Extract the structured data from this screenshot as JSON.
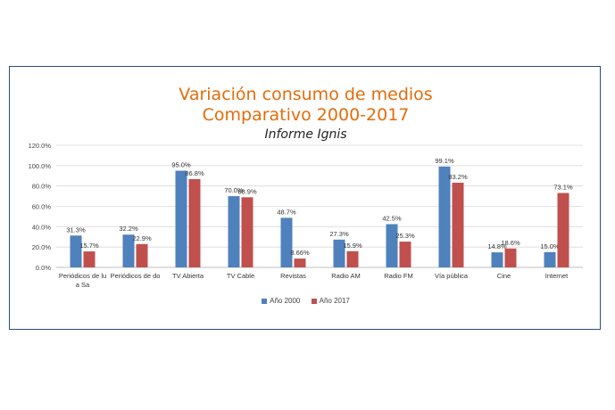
{
  "chart_data": {
    "type": "bar",
    "title_line1": "Variación consumo de medios",
    "title_line2": "Comparativo 2000-2017",
    "subtitle": "Informe Ignis",
    "categories": [
      "Periódicos de lu a Sa",
      "Periódicos de do",
      "TV Abierta",
      "TV Cable",
      "Revistas",
      "Radio AM",
      "Radio FM",
      "Vía pública",
      "Cine",
      "Internet"
    ],
    "category_lines": [
      [
        "Periódicos de lu",
        "a Sa"
      ],
      [
        "Periódicos de do"
      ],
      [
        "TV Abierta"
      ],
      [
        "TV Cable"
      ],
      [
        "Revistas"
      ],
      [
        "Radio AM"
      ],
      [
        "Radio FM"
      ],
      [
        "Vía pública"
      ],
      [
        "Cine"
      ],
      [
        "Internet"
      ]
    ],
    "series": [
      {
        "name": "Año 2000",
        "color": "#4f81bd",
        "values": [
          31.3,
          32.2,
          95.0,
          70.0,
          48.7,
          27.3,
          42.5,
          99.1,
          14.8,
          15.0
        ],
        "labels": [
          "31.3%",
          "32.2%",
          "95.0%",
          "70.0%",
          "48.7%",
          "27.3%",
          "42.5%",
          "99.1%",
          "14.8%",
          "15.0%"
        ]
      },
      {
        "name": "Año 2017",
        "color": "#c0504d",
        "values": [
          15.7,
          22.9,
          86.8,
          68.9,
          8.66,
          15.9,
          25.3,
          83.2,
          18.6,
          73.1
        ],
        "labels": [
          "15.7%",
          "22.9%",
          "86.8%",
          "68.9%",
          "8.66%",
          "15.9%",
          "25.3%",
          "83.2%",
          "18.6%",
          "73.1%"
        ]
      }
    ],
    "ylim": [
      0,
      120
    ],
    "yticks": [
      "0.0%",
      "20.0%",
      "40.0%",
      "60.0%",
      "80.0%",
      "100.0%",
      "120.0%"
    ],
    "grid": true,
    "legend_position": "bottom"
  }
}
